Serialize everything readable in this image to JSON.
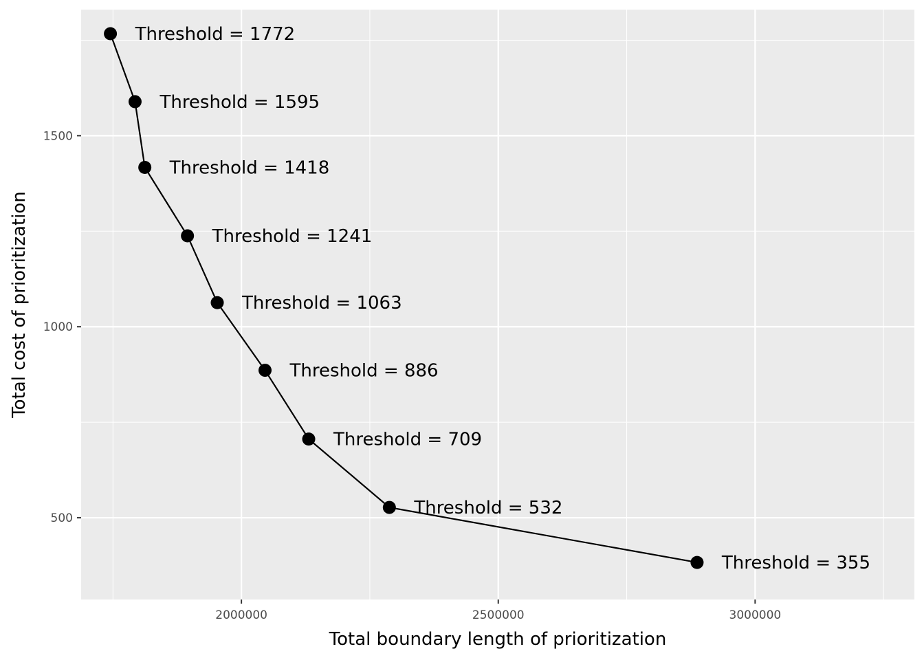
{
  "chart_data": {
    "type": "scatter",
    "xlabel": "Total boundary length of prioritization",
    "ylabel": "Total cost of prioritization",
    "xlim": [
      1688000,
      3310000
    ],
    "ylim": [
      286000,
      1830000
    ],
    "x_ticks": [
      {
        "value": 2000000,
        "label": "2000000"
      },
      {
        "value": 2500000,
        "label": "2500000"
      },
      {
        "value": 3000000,
        "label": "3000000"
      }
    ],
    "y_ticks": [
      {
        "value": 500,
        "label": "500"
      },
      {
        "value": 1000,
        "label": "1000"
      },
      {
        "value": 1500,
        "label": "1500"
      }
    ],
    "grid": true,
    "panel_color": "#ebebeb",
    "grid_color": "#ffffff",
    "line_color": "#000000",
    "point_color": "#000000",
    "points": [
      {
        "x": 1745000,
        "y": 1767,
        "label": "Threshold = 1772"
      },
      {
        "x": 1793000,
        "y": 1589,
        "label": "Threshold = 1595"
      },
      {
        "x": 1812000,
        "y": 1417,
        "label": "Threshold = 1418"
      },
      {
        "x": 1895000,
        "y": 1238,
        "label": "Threshold = 1241"
      },
      {
        "x": 1953000,
        "y": 1063,
        "label": "Threshold = 1063"
      },
      {
        "x": 2046000,
        "y": 886,
        "label": "Threshold = 886"
      },
      {
        "x": 2131000,
        "y": 706,
        "label": "Threshold = 709"
      },
      {
        "x": 2288000,
        "y": 527,
        "label": "Threshold = 532"
      },
      {
        "x": 2887000,
        "y": 383,
        "label": "Threshold = 355"
      }
    ]
  }
}
